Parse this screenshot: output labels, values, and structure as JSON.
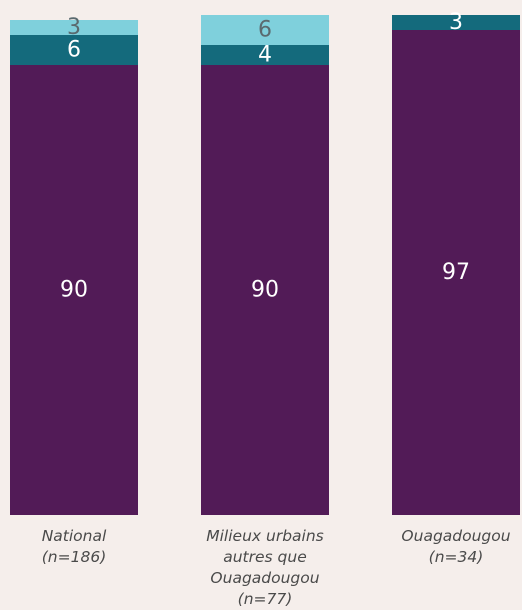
{
  "chart_data": {
    "type": "bar",
    "stacked": true,
    "normalized_percent": true,
    "categories": [
      [
        "National",
        "(n=186)"
      ],
      [
        "Milieux urbains",
        "autres que",
        "Ouagadougou (n=77)"
      ],
      [
        "Ouagadougou",
        "(n=34)"
      ]
    ],
    "series": [
      {
        "values": [
          90,
          90,
          97
        ],
        "color": "#521b57"
      },
      {
        "values": [
          6,
          4,
          3
        ],
        "color": "#146a7c"
      },
      {
        "values": [
          3,
          6,
          0
        ],
        "color": "#7fd0dc"
      }
    ],
    "ylim": [
      0,
      100
    ],
    "legend": "none",
    "grid": false
  }
}
